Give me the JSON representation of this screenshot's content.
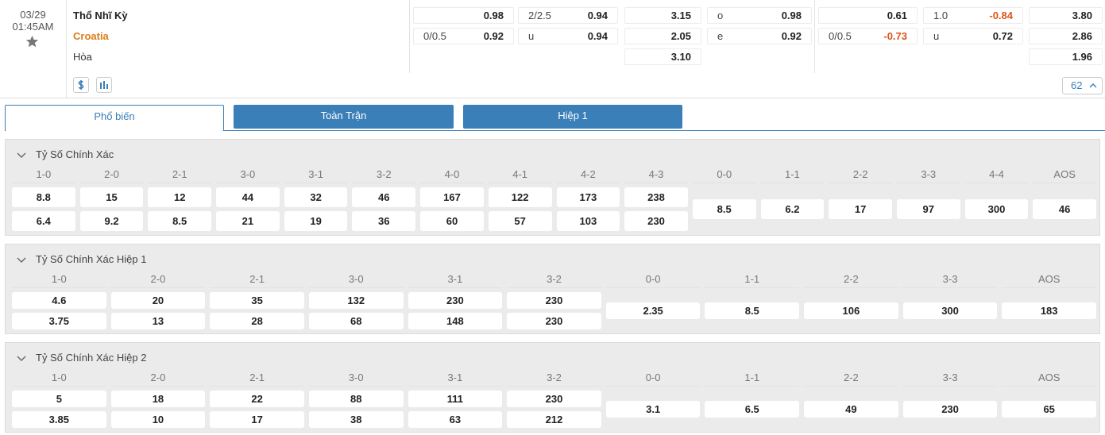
{
  "match": {
    "date": "03/29",
    "time": "01:45AM",
    "teams": [
      "Thổ Nhĩ Kỳ",
      "Croatia",
      "Hòa"
    ],
    "odds": [
      {
        "rows": [
          {
            "value": "0.98"
          },
          {
            "label": "0/0.5",
            "value": "0.92"
          }
        ]
      },
      {
        "rows": [
          {
            "label": "2/2.5",
            "value": "0.94"
          },
          {
            "label": "u",
            "value": "0.94"
          }
        ]
      },
      {
        "rows": [
          {
            "value": "3.15"
          },
          {
            "value": "2.05"
          },
          {
            "value": "3.10"
          }
        ]
      },
      {
        "rows": [
          {
            "label": "o",
            "value": "0.98"
          },
          {
            "label": "e",
            "value": "0.92"
          }
        ]
      },
      {
        "rows": [
          {
            "value": "0.61"
          },
          {
            "label": "0/0.5",
            "value": "-0.73"
          }
        ]
      },
      {
        "rows": [
          {
            "label": "1.0",
            "value": "-0.84"
          },
          {
            "label": "u",
            "value": "0.72"
          }
        ]
      },
      {
        "rows": [
          {
            "value": "3.80"
          },
          {
            "value": "2.86"
          },
          {
            "value": "1.96"
          }
        ]
      }
    ],
    "more_count": "62"
  },
  "tabs": [
    "Phổ biến",
    "Toàn Trận",
    "Hiệp 1"
  ],
  "sections": [
    {
      "title": "Tỷ Số Chính Xác",
      "scores": [
        {
          "label": "1-0",
          "values": [
            "8.8",
            "6.4"
          ]
        },
        {
          "label": "2-0",
          "values": [
            "15",
            "9.2"
          ]
        },
        {
          "label": "2-1",
          "values": [
            "12",
            "8.5"
          ]
        },
        {
          "label": "3-0",
          "values": [
            "44",
            "21"
          ]
        },
        {
          "label": "3-1",
          "values": [
            "32",
            "19"
          ]
        },
        {
          "label": "3-2",
          "values": [
            "46",
            "36"
          ]
        },
        {
          "label": "4-0",
          "values": [
            "167",
            "60"
          ]
        },
        {
          "label": "4-1",
          "values": [
            "122",
            "57"
          ]
        },
        {
          "label": "4-2",
          "values": [
            "173",
            "103"
          ]
        },
        {
          "label": "4-3",
          "values": [
            "238",
            "230"
          ]
        },
        {
          "label": "0-0",
          "values": [
            "8.5"
          ]
        },
        {
          "label": "1-1",
          "values": [
            "6.2"
          ]
        },
        {
          "label": "2-2",
          "values": [
            "17"
          ]
        },
        {
          "label": "3-3",
          "values": [
            "97"
          ]
        },
        {
          "label": "4-4",
          "values": [
            "300"
          ]
        },
        {
          "label": "AOS",
          "values": [
            "46"
          ]
        }
      ]
    },
    {
      "title": "Tỷ Số Chính Xác Hiệp 1",
      "scores": [
        {
          "label": "1-0",
          "values": [
            "4.6",
            "3.75"
          ]
        },
        {
          "label": "2-0",
          "values": [
            "20",
            "13"
          ]
        },
        {
          "label": "2-1",
          "values": [
            "35",
            "28"
          ]
        },
        {
          "label": "3-0",
          "values": [
            "132",
            "68"
          ]
        },
        {
          "label": "3-1",
          "values": [
            "230",
            "148"
          ]
        },
        {
          "label": "3-2",
          "values": [
            "230",
            "230"
          ]
        },
        {
          "label": "0-0",
          "values": [
            "2.35"
          ]
        },
        {
          "label": "1-1",
          "values": [
            "8.5"
          ]
        },
        {
          "label": "2-2",
          "values": [
            "106"
          ]
        },
        {
          "label": "3-3",
          "values": [
            "300"
          ]
        },
        {
          "label": "AOS",
          "values": [
            "183"
          ]
        }
      ]
    },
    {
      "title": "Tỷ Số Chính Xác Hiệp 2",
      "scores": [
        {
          "label": "1-0",
          "values": [
            "5",
            "3.85"
          ]
        },
        {
          "label": "2-0",
          "values": [
            "18",
            "10"
          ]
        },
        {
          "label": "2-1",
          "values": [
            "22",
            "17"
          ]
        },
        {
          "label": "3-0",
          "values": [
            "88",
            "38"
          ]
        },
        {
          "label": "3-1",
          "values": [
            "111",
            "63"
          ]
        },
        {
          "label": "3-2",
          "values": [
            "230",
            "212"
          ]
        },
        {
          "label": "0-0",
          "values": [
            "3.1"
          ]
        },
        {
          "label": "1-1",
          "values": [
            "6.5"
          ]
        },
        {
          "label": "2-2",
          "values": [
            "49"
          ]
        },
        {
          "label": "3-3",
          "values": [
            "230"
          ]
        },
        {
          "label": "AOS",
          "values": [
            "65"
          ]
        }
      ]
    }
  ]
}
